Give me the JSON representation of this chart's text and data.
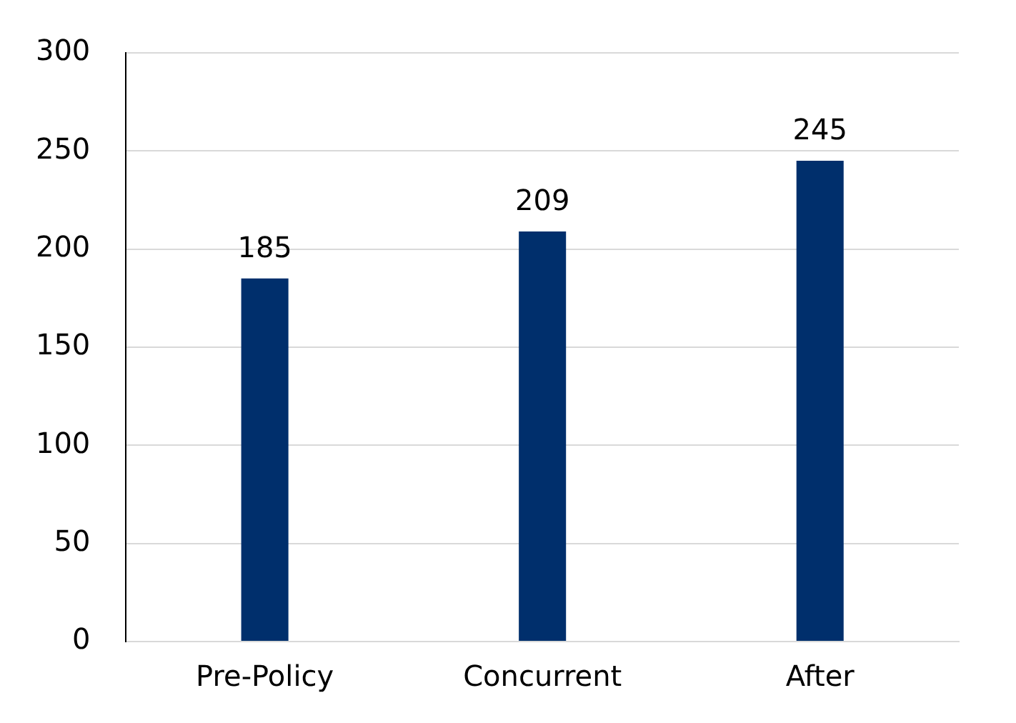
{
  "chart_data": {
    "type": "bar",
    "categories": [
      "Pre-Policy",
      "Concurrent",
      "After"
    ],
    "values": [
      185,
      209,
      245
    ],
    "color": "#002f6c",
    "ylim": [
      0,
      300
    ],
    "yticks": [
      0,
      50,
      100,
      150,
      200,
      250,
      300
    ],
    "grid": "y",
    "data_labels": true,
    "legend": false
  }
}
